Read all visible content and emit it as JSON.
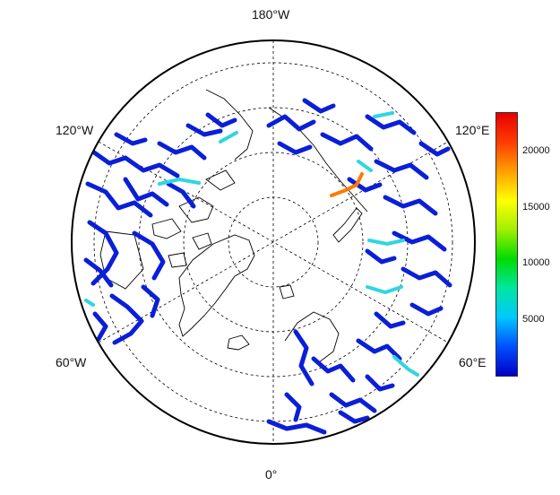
{
  "labels": {
    "top": "180°W",
    "bottom": "0°",
    "upper_left": "120°W",
    "upper_right": "120°E",
    "lower_left": "60°W",
    "lower_right": "60°E"
  },
  "colorbar": {
    "min": 0,
    "max": 23500,
    "ticks": [
      "5000",
      "10000",
      "15000",
      "20000"
    ],
    "tick_values": [
      5000,
      10000,
      15000,
      20000
    ],
    "colors": [
      "#0000c8",
      "#0050ff",
      "#00c8ff",
      "#00e6a0",
      "#00dc00",
      "#a0f000",
      "#ffff00",
      "#ffa000",
      "#ff3c00",
      "#e60000"
    ]
  },
  "colors": {
    "river_low": "#0a1fd6",
    "river_mid": "#2fd6e0",
    "river_high": "#ff7a00",
    "coastline": "#000000",
    "graticule": "#000000"
  }
}
